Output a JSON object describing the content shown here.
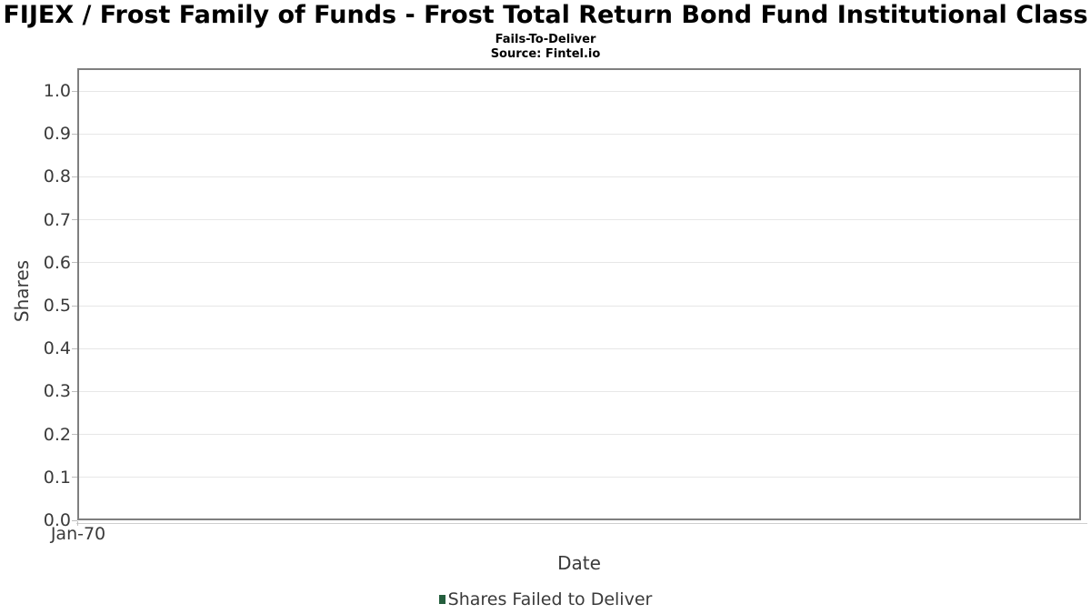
{
  "header": {
    "title": "FIJEX / Frost Family of Funds - Frost Total Return Bond Fund Institutional Class",
    "subtitle": "Fails-To-Deliver",
    "source": "Source: Fintel.io"
  },
  "chart_data": {
    "type": "bar",
    "title": "FIJEX / Frost Family of Funds - Frost Total Return Bond Fund Institutional Class",
    "subtitle": "Fails-To-Deliver",
    "source": "Source: Fintel.io",
    "xlabel": "Date",
    "ylabel": "Shares",
    "xticks": [
      "Jan-70"
    ],
    "yticks": [
      "0.0",
      "0.1",
      "0.2",
      "0.3",
      "0.4",
      "0.5",
      "0.6",
      "0.7",
      "0.8",
      "0.9",
      "1.0"
    ],
    "ylim": [
      0.0,
      1.0
    ],
    "grid": "horizontal",
    "legend_position": "bottom",
    "series": [
      {
        "name": "Shares Failed to Deliver",
        "color": "#245e3d",
        "values": []
      }
    ],
    "colors": {
      "plot_border": "#7f7f7f",
      "gridline": "#e7e7e7",
      "tick_label": "#3a3a3a",
      "legend_marker": "#245e3d"
    }
  },
  "legend": {
    "items": [
      {
        "label": "Shares Failed to Deliver",
        "color": "#245e3d"
      }
    ]
  }
}
